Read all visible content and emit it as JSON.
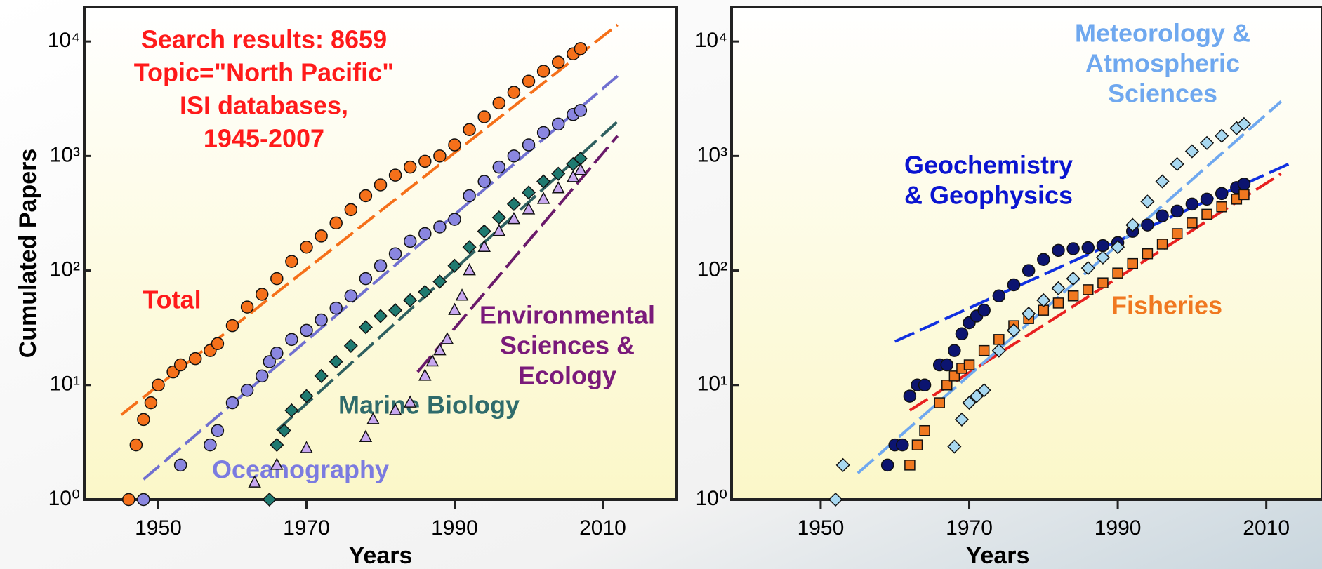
{
  "chart_data": [
    {
      "type": "scatter",
      "log_y": true,
      "xlabel": "Years",
      "ylabel": "Cumulated Papers",
      "xlim": [
        1940,
        2020
      ],
      "ylim": [
        1,
        20000
      ],
      "xticks": [
        1950,
        1970,
        1990,
        2010
      ],
      "yticks": [
        {
          "value": 1,
          "label": "10⁰"
        },
        {
          "value": 10,
          "label": "10¹"
        },
        {
          "value": 100,
          "label": "10²"
        },
        {
          "value": 1000,
          "label": "10³"
        },
        {
          "value": 10000,
          "label": "10⁴"
        }
      ],
      "annotation": {
        "color": "#ff1a1a",
        "lines": [
          "Search results: 8659",
          "Topic=\"North Pacific\"",
          "ISI databases,",
          "1945-2007"
        ]
      },
      "series": [
        {
          "label": [
            "Total"
          ],
          "label_color": "#ff1a1a",
          "color": "#f5701a",
          "trend_color": "#f5701a",
          "marker": "circle",
          "x": [
            1946,
            1947,
            1948,
            1949,
            1950,
            1952,
            1953,
            1955,
            1957,
            1958,
            1960,
            1962,
            1964,
            1966,
            1968,
            1970,
            1972,
            1974,
            1976,
            1978,
            1980,
            1982,
            1984,
            1986,
            1988,
            1990,
            1992,
            1994,
            1996,
            1998,
            2000,
            2002,
            2004,
            2006,
            2007
          ],
          "values": [
            1,
            3,
            5,
            7,
            10,
            13,
            15,
            17,
            20,
            23,
            33,
            48,
            62,
            85,
            120,
            160,
            200,
            260,
            340,
            450,
            560,
            680,
            800,
            900,
            1000,
            1250,
            1700,
            2200,
            2900,
            3600,
            4500,
            5500,
            6600,
            7800,
            8659
          ],
          "trend_x": [
            1945,
            2012
          ],
          "trend_y": [
            5.5,
            14000
          ]
        },
        {
          "label": [
            "Oceanography"
          ],
          "label_color": "#7b7be0",
          "color": "#8a86e0",
          "trend_color": "#7070d0",
          "marker": "circle",
          "x": [
            1948,
            1953,
            1957,
            1958,
            1960,
            1962,
            1964,
            1965,
            1966,
            1968,
            1970,
            1972,
            1974,
            1976,
            1978,
            1980,
            1982,
            1984,
            1986,
            1988,
            1990,
            1992,
            1994,
            1996,
            1998,
            2000,
            2002,
            2004,
            2006,
            2007
          ],
          "values": [
            1,
            2,
            3,
            4,
            7,
            9,
            12,
            16,
            19,
            25,
            30,
            37,
            47,
            60,
            85,
            110,
            140,
            180,
            210,
            240,
            280,
            450,
            600,
            800,
            1000,
            1250,
            1600,
            1900,
            2300,
            2500
          ],
          "trend_x": [
            1948,
            2012
          ],
          "trend_y": [
            1.5,
            5000
          ]
        },
        {
          "label": [
            "Marine Biology"
          ],
          "label_color": "#2f6b6b",
          "color": "#1f7a70",
          "trend_color": "#2f6060",
          "marker": "diamond",
          "x": [
            1965,
            1966,
            1967,
            1968,
            1970,
            1972,
            1974,
            1976,
            1978,
            1980,
            1982,
            1984,
            1986,
            1988,
            1990,
            1992,
            1994,
            1996,
            1998,
            2000,
            2002,
            2004,
            2006,
            2007
          ],
          "values": [
            1,
            3,
            4,
            6,
            8,
            12,
            16,
            22,
            32,
            40,
            45,
            55,
            65,
            80,
            110,
            160,
            220,
            290,
            380,
            480,
            600,
            700,
            850,
            950
          ],
          "trend_x": [
            1966,
            2012
          ],
          "trend_y": [
            4,
            2000
          ]
        },
        {
          "label": [
            "Environmental",
            "Sciences &",
            "Ecology"
          ],
          "label_color": "#7a1a7a",
          "color": "#c8a8f0",
          "trend_color": "#6a1a6a",
          "marker": "triangle",
          "x": [
            1963,
            1966,
            1970,
            1978,
            1979,
            1982,
            1984,
            1986,
            1987,
            1988,
            1989,
            1990,
            1991,
            1992,
            1994,
            1996,
            1998,
            2000,
            2002,
            2004,
            2006,
            2007
          ],
          "values": [
            1.4,
            2,
            2.8,
            3.5,
            5,
            6,
            7,
            12,
            16,
            20,
            25,
            45,
            60,
            100,
            160,
            220,
            280,
            340,
            420,
            520,
            650,
            750
          ],
          "trend_x": [
            1985,
            2012
          ],
          "trend_y": [
            13,
            1500
          ]
        }
      ]
    },
    {
      "type": "scatter",
      "log_y": true,
      "xlabel": "Years",
      "xlim": [
        1938,
        2017.5
      ],
      "ylim": [
        1,
        20000
      ],
      "xticks": [
        1950,
        1970,
        1990,
        2010
      ],
      "yticks": [
        {
          "value": 1,
          "label": "10⁰"
        },
        {
          "value": 10,
          "label": "10¹"
        },
        {
          "value": 100,
          "label": "10²"
        },
        {
          "value": 1000,
          "label": "10³"
        },
        {
          "value": 10000,
          "label": "10⁴"
        }
      ],
      "series": [
        {
          "label": [
            "Geochemistry",
            "& Geophysics"
          ],
          "label_color": "#0a14d0",
          "color": "#0c1470",
          "trend_color": "#1030e0",
          "marker": "circle",
          "x": [
            1959,
            1960,
            1961,
            1962,
            1963,
            1964,
            1966,
            1967,
            1968,
            1969,
            1970,
            1971,
            1972,
            1974,
            1976,
            1978,
            1980,
            1982,
            1984,
            1986,
            1988,
            1990,
            1992,
            1994,
            1996,
            1998,
            2000,
            2002,
            2004,
            2006,
            2007
          ],
          "values": [
            2,
            3,
            3,
            8,
            10,
            10,
            15,
            15,
            20,
            28,
            35,
            40,
            45,
            60,
            75,
            100,
            125,
            150,
            155,
            158,
            165,
            175,
            220,
            250,
            300,
            330,
            380,
            420,
            470,
            530,
            570
          ],
          "trend_x": [
            1960,
            2013
          ],
          "trend_y": [
            24,
            850
          ]
        },
        {
          "label": [
            "Fisheries"
          ],
          "label_color": "#f07820",
          "color": "#f07820",
          "trend_color": "#e82020",
          "marker": "square",
          "x": [
            1962,
            1963,
            1964,
            1966,
            1967,
            1968,
            1969,
            1970,
            1972,
            1974,
            1976,
            1978,
            1980,
            1982,
            1984,
            1986,
            1988,
            1990,
            1992,
            1994,
            1996,
            1998,
            2000,
            2002,
            2004,
            2006,
            2007
          ],
          "values": [
            2,
            3,
            4,
            7,
            10,
            12,
            14,
            15,
            20,
            25,
            33,
            38,
            45,
            52,
            60,
            68,
            78,
            95,
            115,
            140,
            170,
            210,
            260,
            310,
            360,
            420,
            460
          ],
          "trend_x": [
            1962,
            2012
          ],
          "trend_y": [
            6,
            700
          ]
        },
        {
          "label": [
            "Meteorology &",
            "Atmospheric",
            "Sciences"
          ],
          "label_color": "#6fa8ef",
          "color": "#a8d8f0",
          "trend_color": "#6fa8ef",
          "marker": "diamond",
          "x": [
            1952,
            1953,
            1968,
            1969,
            1970,
            1971,
            1972,
            1974,
            1976,
            1978,
            1980,
            1982,
            1984,
            1986,
            1988,
            1990,
            1992,
            1994,
            1996,
            1998,
            2000,
            2002,
            2004,
            2006,
            2007
          ],
          "values": [
            1,
            2,
            2.9,
            5,
            7,
            8,
            9,
            20,
            30,
            42,
            55,
            70,
            85,
            105,
            130,
            160,
            250,
            400,
            600,
            850,
            1100,
            1300,
            1500,
            1750,
            1900
          ],
          "trend_x": [
            1955,
            2012
          ],
          "trend_y": [
            1.7,
            3000
          ]
        }
      ]
    }
  ]
}
